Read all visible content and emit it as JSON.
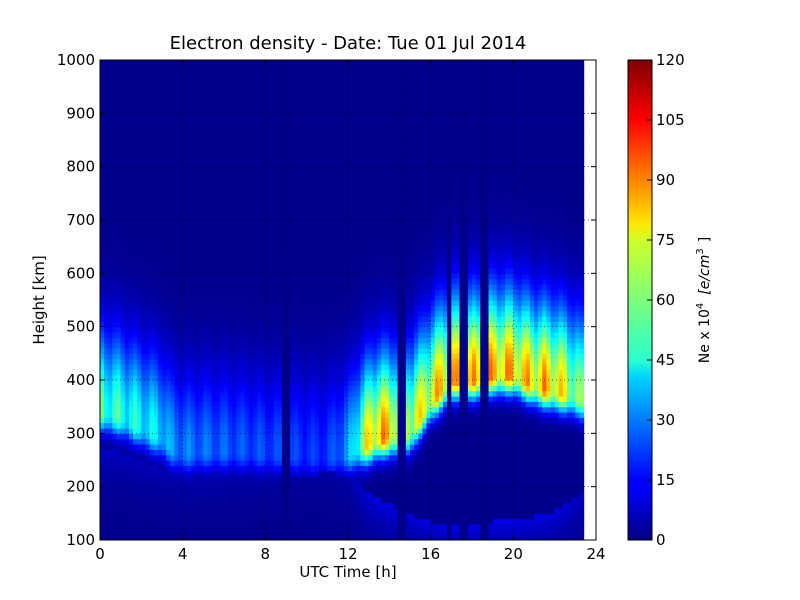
{
  "chart_data": {
    "type": "heatmap",
    "title": "Electron density - Date: Tue 01 Jul 2014",
    "xlabel": "UTC Time [h]",
    "ylabel": "Height [km]",
    "xlim": [
      0,
      24
    ],
    "ylim": [
      100,
      1000
    ],
    "x_ticks": [
      0,
      4,
      8,
      12,
      16,
      20,
      24
    ],
    "y_ticks": [
      100,
      200,
      300,
      400,
      500,
      600,
      700,
      800,
      900,
      1000
    ],
    "grid": true,
    "data_end_hour": 23.4,
    "colorbar": {
      "label": "Ne x 10",
      "label_exponent": "4",
      "unit": "[e/cm",
      "unit_exponent": "3",
      "unit_close": "]",
      "range": [
        0,
        120
      ],
      "ticks": [
        0,
        15,
        30,
        45,
        60,
        75,
        90,
        105,
        120
      ],
      "colormap": "jet"
    },
    "gap_hours": [
      9.0,
      14.6,
      16.9,
      17.6,
      18.6
    ],
    "profile": {
      "hour": [
        0,
        1,
        2,
        3,
        3.5,
        4,
        5,
        6,
        7,
        8,
        9,
        10,
        11,
        12,
        12.5,
        13,
        13.5,
        14,
        14.5,
        15,
        15.5,
        16,
        16.5,
        17,
        18,
        19,
        19.5,
        20,
        21,
        21.5,
        22,
        23,
        23.4
      ],
      "peak_height_km": [
        340,
        330,
        310,
        290,
        270,
        262,
        265,
        265,
        265,
        260,
        260,
        255,
        255,
        260,
        270,
        280,
        290,
        295,
        295,
        300,
        330,
        360,
        380,
        400,
        400,
        410,
        410,
        410,
        390,
        385,
        380,
        370,
        360
      ],
      "peak_density": [
        60,
        55,
        50,
        45,
        35,
        32,
        30,
        28,
        26,
        25,
        24,
        22,
        22,
        35,
        60,
        85,
        95,
        90,
        85,
        80,
        80,
        85,
        90,
        92,
        90,
        93,
        95,
        92,
        88,
        92,
        90,
        70,
        60
      ],
      "base_height_km": [
        270,
        265,
        250,
        232,
        222,
        215,
        210,
        208,
        208,
        212,
        218,
        222,
        228,
        220,
        205,
        190,
        178,
        168,
        160,
        150,
        140,
        135,
        130,
        130,
        130,
        135,
        140,
        140,
        145,
        150,
        155,
        180,
        200
      ]
    }
  }
}
